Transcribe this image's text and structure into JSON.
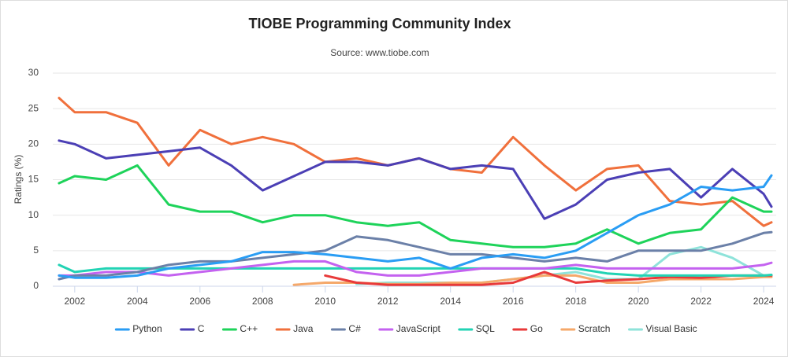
{
  "chart_data": {
    "type": "line",
    "title": "TIOBE Programming Community Index",
    "subtitle": "Source: www.tiobe.com",
    "y_label": "Ratings (%)",
    "x": [
      2001.5,
      2002,
      2003,
      2004,
      2005,
      2006,
      2007,
      2008,
      2009,
      2010,
      2011,
      2012,
      2013,
      2014,
      2015,
      2016,
      2017,
      2018,
      2019,
      2020,
      2021,
      2022,
      2023,
      2024,
      2024.25
    ],
    "xlim": [
      2001.3,
      2024.4
    ],
    "xticks": [
      2002,
      2004,
      2006,
      2008,
      2010,
      2012,
      2014,
      2016,
      2018,
      2020,
      2022,
      2024
    ],
    "ylim": [
      0,
      30
    ],
    "yticks": [
      0,
      5,
      10,
      15,
      20,
      25,
      30
    ],
    "grid": true,
    "legend": "bottom",
    "series": [
      {
        "name": "Python",
        "color": "#2a9df4",
        "values": [
          1.5,
          1.2,
          1.2,
          1.5,
          2.5,
          3,
          3.5,
          4.8,
          4.8,
          4.5,
          4,
          3.5,
          4,
          2.5,
          4,
          4.5,
          4,
          5,
          7.5,
          10,
          11.5,
          14,
          13.5,
          14,
          15.6
        ]
      },
      {
        "name": "C",
        "color": "#4b3fb5",
        "values": [
          20.5,
          20,
          18,
          18.5,
          19,
          19.5,
          17,
          13.5,
          15.5,
          17.5,
          17.5,
          17,
          18,
          16.5,
          17,
          16.5,
          9.5,
          11.5,
          15,
          16,
          16.5,
          12.5,
          16.5,
          13,
          11.2
        ]
      },
      {
        "name": "C++",
        "color": "#1ed35a",
        "values": [
          14.5,
          15.5,
          15,
          17,
          11.5,
          10.5,
          10.5,
          9,
          10,
          10,
          9,
          8.5,
          9,
          6.5,
          6,
          5.5,
          5.5,
          6,
          8,
          6,
          7.5,
          8,
          12.5,
          10.5,
          10.5
        ]
      },
      {
        "name": "Java",
        "color": "#f0703c",
        "values": [
          26.5,
          24.5,
          24.5,
          23,
          17,
          22,
          20,
          21,
          20,
          17.5,
          18,
          17,
          18,
          16.5,
          16,
          21,
          17,
          13.5,
          16.5,
          17,
          12,
          11.5,
          12,
          8.5,
          9
        ]
      },
      {
        "name": "C#",
        "color": "#6b80a8",
        "values": [
          1,
          1.5,
          1.5,
          2,
          3,
          3.5,
          3.5,
          4,
          4.5,
          5,
          7,
          6.5,
          5.5,
          4.5,
          4.5,
          4,
          3.5,
          4,
          3.5,
          5,
          5,
          5,
          6,
          7.5,
          7.6
        ]
      },
      {
        "name": "JavaScript",
        "color": "#c462f0",
        "values": [
          1.5,
          1.5,
          2,
          2,
          1.5,
          2,
          2.5,
          3,
          3.5,
          3.5,
          2,
          1.5,
          1.5,
          2,
          2.5,
          2.5,
          2.5,
          3,
          2.5,
          2.5,
          2.5,
          2.5,
          2.5,
          3,
          3.3
        ]
      },
      {
        "name": "SQL",
        "color": "#22d3b4",
        "values": [
          3,
          2,
          2.5,
          2.5,
          2.5,
          2.5,
          2.5,
          2.5,
          2.5,
          2.5,
          2.5,
          2.5,
          2.5,
          2.5,
          2.5,
          2.5,
          2.5,
          2.5,
          1.8,
          1.5,
          1.5,
          1.5,
          1.5,
          1.5,
          1.6
        ]
      },
      {
        "name": "Go",
        "color": "#e83a3a",
        "values": [
          null,
          null,
          null,
          null,
          null,
          null,
          null,
          null,
          null,
          1.5,
          0.5,
          0.2,
          0.2,
          0.2,
          0.2,
          0.5,
          2,
          0.5,
          0.8,
          1,
          1.3,
          1.2,
          1.5,
          1.5,
          1.5
        ]
      },
      {
        "name": "Scratch",
        "color": "#f5a86a",
        "values": [
          null,
          null,
          null,
          null,
          null,
          null,
          null,
          null,
          0.2,
          0.5,
          0.5,
          0.3,
          0.3,
          0.5,
          0.5,
          1,
          1.5,
          1.5,
          0.5,
          0.5,
          1,
          1,
          1,
          1.3,
          1.3
        ]
      },
      {
        "name": "Visual Basic",
        "color": "#8ee3da",
        "values": [
          null,
          null,
          null,
          null,
          null,
          null,
          null,
          null,
          null,
          null,
          0.3,
          0.5,
          0.5,
          0.5,
          0.5,
          1,
          1.5,
          2,
          1,
          1,
          4.5,
          5.5,
          4,
          1.5,
          1.5
        ]
      }
    ]
  }
}
